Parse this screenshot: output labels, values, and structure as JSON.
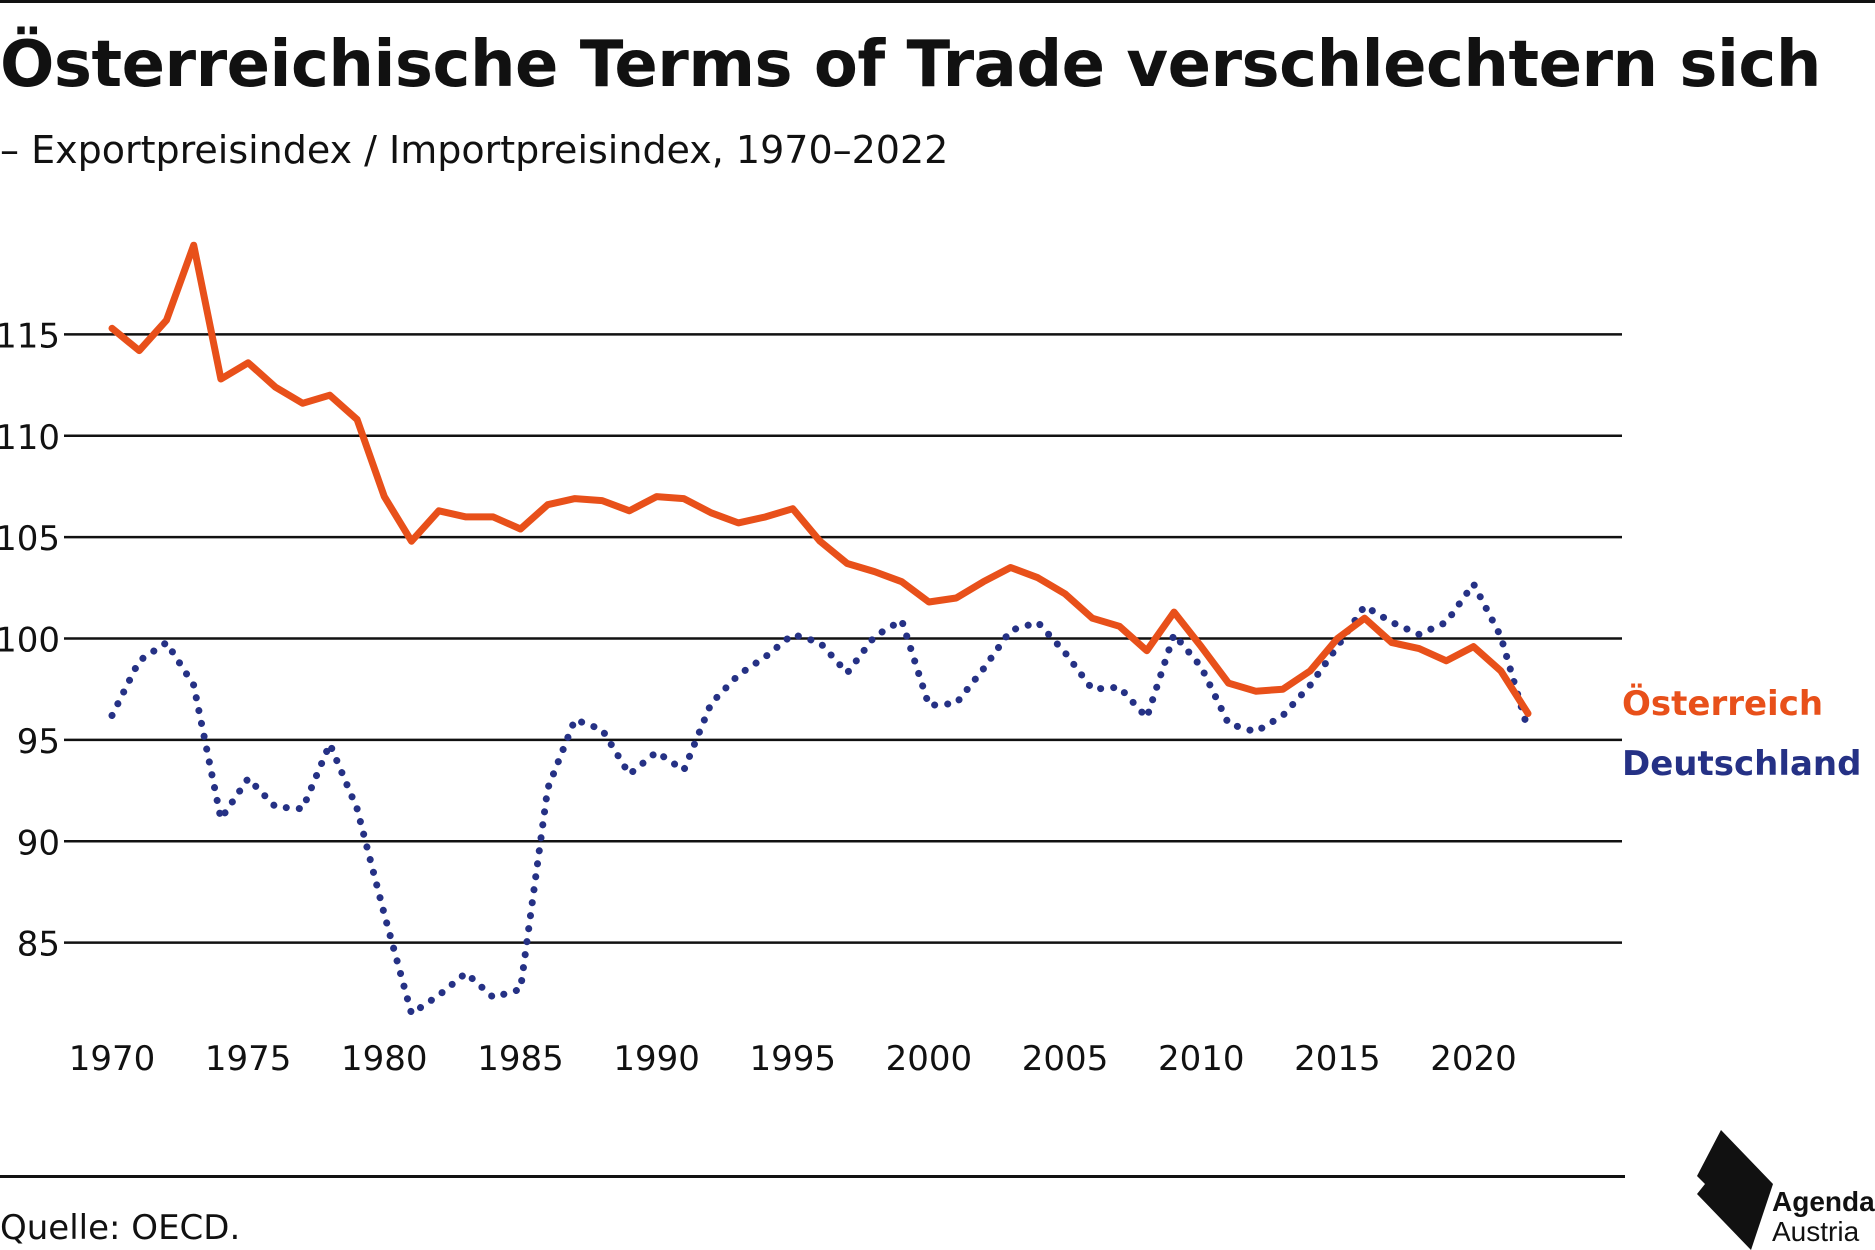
{
  "header": {
    "title": "Österreichische Terms of Trade verschlechtern sich",
    "subtitle": "– Exportpreisindex / Importpreisindex, 1970–2022"
  },
  "footer": {
    "source": "Quelle: OECD."
  },
  "logo": {
    "name": "Agenda",
    "sub": "Austria"
  },
  "colors": {
    "austria": "#e8501a",
    "germany": "#253185",
    "grid": "#111111",
    "text": "#111111"
  },
  "chart_data": {
    "type": "line",
    "title": "Österreichische Terms of Trade verschlechtern sich",
    "subtitle": "– Exportpreisindex / Importpreisindex, 1970–2022",
    "xlabel": "",
    "ylabel": "",
    "xlim": [
      1970,
      2022
    ],
    "ylim": [
      80,
      120
    ],
    "x_ticks": [
      "1970",
      "1975",
      "1980",
      "1985",
      "1990",
      "1995",
      "2000",
      "2005",
      "2010",
      "2015",
      "2020"
    ],
    "y_ticks": [
      "85",
      "90",
      "95",
      "100",
      "105",
      "110",
      "115"
    ],
    "grid": "horizontal",
    "legend": "line-end labels",
    "x": [
      1970,
      1971,
      1972,
      1973,
      1974,
      1975,
      1976,
      1977,
      1978,
      1979,
      1980,
      1981,
      1982,
      1983,
      1984,
      1985,
      1986,
      1987,
      1988,
      1989,
      1990,
      1991,
      1992,
      1993,
      1994,
      1995,
      1996,
      1997,
      1998,
      1999,
      2000,
      2001,
      2002,
      2003,
      2004,
      2005,
      2006,
      2007,
      2008,
      2009,
      2010,
      2011,
      2012,
      2013,
      2014,
      2015,
      2016,
      2017,
      2018,
      2019,
      2020,
      2021,
      2022
    ],
    "series": [
      {
        "name": "Österreich",
        "style": "solid",
        "values": [
          115.3,
          114.2,
          115.7,
          119.4,
          112.8,
          113.6,
          112.4,
          111.6,
          112.0,
          110.8,
          107.0,
          104.8,
          106.3,
          106.0,
          106.0,
          105.4,
          106.6,
          106.9,
          106.8,
          106.3,
          107.0,
          106.9,
          106.2,
          105.7,
          106.0,
          106.4,
          104.8,
          103.7,
          103.3,
          102.8,
          101.8,
          102.0,
          102.8,
          103.5,
          103.0,
          102.2,
          101.0,
          100.6,
          99.4,
          101.3,
          99.6,
          97.8,
          97.4,
          97.5,
          98.4,
          100.0,
          101.0,
          99.8,
          99.5,
          98.9,
          99.6,
          98.4,
          96.3
        ]
      },
      {
        "name": "Deutschland",
        "style": "dotted",
        "values": [
          96.2,
          98.9,
          99.8,
          97.7,
          91.1,
          93.1,
          91.7,
          91.6,
          94.8,
          91.6,
          86.4,
          81.5,
          82.4,
          83.5,
          82.3,
          82.7,
          92.6,
          96.0,
          95.5,
          93.3,
          94.4,
          93.5,
          96.8,
          98.2,
          99.1,
          100.2,
          99.8,
          98.3,
          100.1,
          100.9,
          96.7,
          96.8,
          98.5,
          100.4,
          100.8,
          99.3,
          97.5,
          97.6,
          96.1,
          100.2,
          98.6,
          95.8,
          95.4,
          96.2,
          97.7,
          99.6,
          101.6,
          100.8,
          100.2,
          100.8,
          102.7,
          100.1,
          95.5
        ]
      }
    ]
  }
}
